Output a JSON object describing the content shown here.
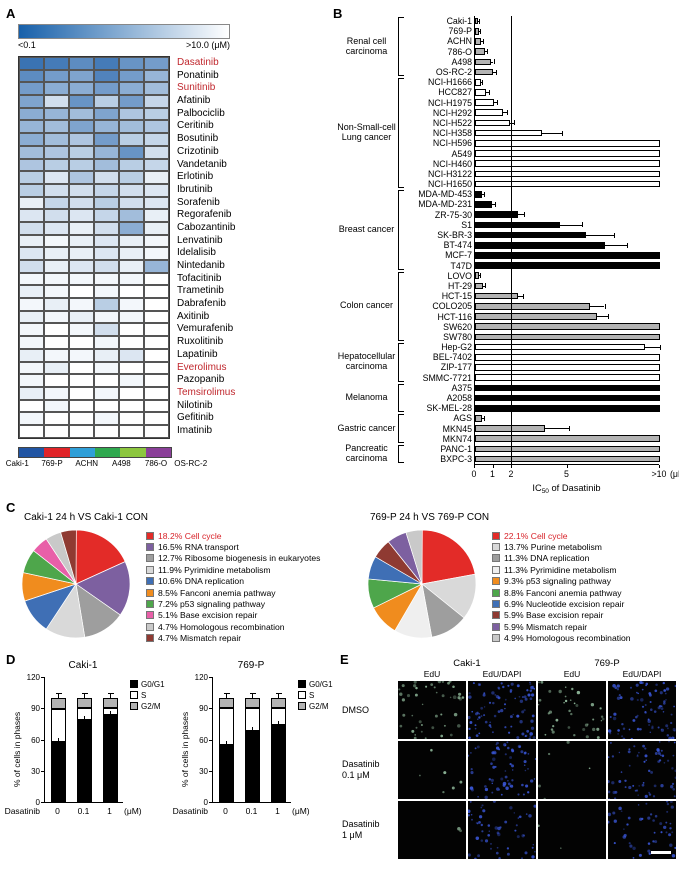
{
  "panels": {
    "a": "A",
    "b": "B",
    "c": "C",
    "d": "D",
    "e": "E"
  },
  "heatmap": {
    "scale_min_label": "<0.1",
    "scale_max_label": ">10.0 (μM)",
    "cell_lines": [
      "Caki-1",
      "769-P",
      "ACHN",
      "A498",
      "786-O",
      "OS-RC-2"
    ],
    "cell_line_colors": [
      "#2155a3",
      "#e02428",
      "#2f9fd8",
      "#2fa84f",
      "#8cc63e",
      "#8a3f98"
    ],
    "drugs": [
      {
        "name": "Dasatinib",
        "highlight": true,
        "values": [
          0.85,
          0.8,
          0.7,
          0.8,
          0.65,
          0.6
        ]
      },
      {
        "name": "Ponatinib",
        "highlight": false,
        "values": [
          0.7,
          0.6,
          0.55,
          0.75,
          0.6,
          0.45
        ]
      },
      {
        "name": "Sunitinib",
        "highlight": true,
        "values": [
          0.6,
          0.5,
          0.5,
          0.6,
          0.5,
          0.4
        ]
      },
      {
        "name": "Afatinib",
        "highlight": false,
        "values": [
          0.55,
          0.2,
          0.65,
          0.3,
          0.6,
          0.25
        ]
      },
      {
        "name": "Palbociclib",
        "highlight": false,
        "values": [
          0.5,
          0.45,
          0.4,
          0.55,
          0.35,
          0.3
        ]
      },
      {
        "name": "Ceritinib",
        "highlight": false,
        "values": [
          0.45,
          0.4,
          0.55,
          0.45,
          0.4,
          0.35
        ]
      },
      {
        "name": "Bosutinib",
        "highlight": false,
        "values": [
          0.5,
          0.4,
          0.35,
          0.6,
          0.3,
          0.25
        ]
      },
      {
        "name": "Crizotinib",
        "highlight": false,
        "values": [
          0.4,
          0.35,
          0.3,
          0.45,
          0.65,
          0.2
        ]
      },
      {
        "name": "Vandetanib",
        "highlight": false,
        "values": [
          0.35,
          0.3,
          0.3,
          0.4,
          0.3,
          0.25
        ]
      },
      {
        "name": "Erlotinib",
        "highlight": false,
        "values": [
          0.3,
          0.15,
          0.35,
          0.2,
          0.3,
          0.1
        ]
      },
      {
        "name": "Ibrutinib",
        "highlight": false,
        "values": [
          0.3,
          0.2,
          0.2,
          0.25,
          0.2,
          0.15
        ]
      },
      {
        "name": "Sorafenib",
        "highlight": false,
        "values": [
          0.1,
          0.25,
          0.2,
          0.3,
          0.2,
          0.15
        ]
      },
      {
        "name": "Regorafenib",
        "highlight": false,
        "values": [
          0.15,
          0.2,
          0.15,
          0.25,
          0.4,
          0.1
        ]
      },
      {
        "name": "Cabozantinib",
        "highlight": false,
        "values": [
          0.2,
          0.15,
          0.1,
          0.2,
          0.5,
          0.1
        ]
      },
      {
        "name": "Lenvatinib",
        "highlight": false,
        "values": [
          0.1,
          0.05,
          0.1,
          0.15,
          0.1,
          0.05
        ]
      },
      {
        "name": "Idelalisib",
        "highlight": false,
        "values": [
          0.15,
          0.1,
          0.1,
          0.15,
          0.1,
          0.05
        ]
      },
      {
        "name": "Nintedanib",
        "highlight": false,
        "values": [
          0.2,
          0.1,
          0.15,
          0.2,
          0.1,
          0.45
        ]
      },
      {
        "name": "Tofacitinib",
        "highlight": false,
        "values": [
          0.05,
          0.05,
          0.05,
          0.05,
          0.05,
          0
        ]
      },
      {
        "name": "Trametinib",
        "highlight": false,
        "values": [
          0.1,
          0.05,
          0,
          0.05,
          0,
          0
        ]
      },
      {
        "name": "Dabrafenib",
        "highlight": false,
        "values": [
          0.05,
          0.1,
          0.05,
          0.3,
          0.05,
          0
        ]
      },
      {
        "name": "Axitinib",
        "highlight": false,
        "values": [
          0.1,
          0.05,
          0.1,
          0.05,
          0.05,
          0
        ]
      },
      {
        "name": "Vemurafenib",
        "highlight": false,
        "values": [
          0.05,
          0,
          0.05,
          0.2,
          0,
          0
        ]
      },
      {
        "name": "Ruxolitinib",
        "highlight": false,
        "values": [
          0.05,
          0,
          0,
          0.05,
          0,
          0
        ]
      },
      {
        "name": "Lapatinib",
        "highlight": false,
        "values": [
          0.1,
          0.05,
          0.05,
          0.1,
          0.15,
          0
        ]
      },
      {
        "name": "Everolimus",
        "highlight": true,
        "values": [
          0.05,
          0.1,
          0,
          0.05,
          0,
          0
        ]
      },
      {
        "name": "Pazopanib",
        "highlight": false,
        "values": [
          0.05,
          0,
          0,
          0,
          0.05,
          0
        ]
      },
      {
        "name": "Temsirolimus",
        "highlight": true,
        "values": [
          0.1,
          0.05,
          0,
          0.05,
          0,
          0
        ]
      },
      {
        "name": "Nilotinib",
        "highlight": false,
        "values": [
          0,
          0.05,
          0,
          0,
          0,
          0
        ]
      },
      {
        "name": "Gefitinib",
        "highlight": false,
        "values": [
          0.05,
          0,
          0,
          0.05,
          0,
          0
        ]
      },
      {
        "name": "Imatinib",
        "highlight": false,
        "values": [
          0,
          0,
          0,
          0,
          0,
          0
        ]
      }
    ]
  },
  "bars": {
    "axis": {
      "ticks": [
        {
          "label": "0",
          "value": 0
        },
        {
          "label": "1",
          "value": 1
        },
        {
          "label": "2",
          "value": 2
        },
        {
          "label": "5",
          "value": 5
        },
        {
          "label": ">10",
          "value": 10
        }
      ],
      "unit": "(μM)",
      "max": 10,
      "ref_line": 2,
      "xlabel_prefix": "IC",
      "xlabel_sub": "50",
      "xlabel_suffix": " of Dasatinib"
    },
    "groups": [
      {
        "label": "Renal cell carcinoma",
        "fill": "#b3b3b3",
        "lines": [
          {
            "name": "Caki-1",
            "value": 0.15,
            "err": 0.06
          },
          {
            "name": "769-P",
            "value": 0.2,
            "err": 0.06
          },
          {
            "name": "ACHN",
            "value": 0.35,
            "err": 0.1
          },
          {
            "name": "786-O",
            "value": 0.55,
            "err": 0.12
          },
          {
            "name": "A498",
            "value": 0.85,
            "err": 0.15
          },
          {
            "name": "OS-RC-2",
            "value": 0.95,
            "err": 0.2
          }
        ]
      },
      {
        "label": "Non-Small-cell Lung cancer",
        "fill": "#ffffff",
        "lines": [
          {
            "name": "NCI-H1666",
            "value": 0.3,
            "err": 0.1
          },
          {
            "name": "HCC827",
            "value": 0.6,
            "err": 0.15
          },
          {
            "name": "NCI-H1975",
            "value": 1.0,
            "err": 0.2
          },
          {
            "name": "NCI-H292",
            "value": 1.5,
            "err": 0.25
          },
          {
            "name": "NCI-H522",
            "value": 1.9,
            "err": 0.2
          },
          {
            "name": "NCI-H358",
            "value": 3.6,
            "err": 1.1
          },
          {
            "name": "NCI-H596",
            "value": 10,
            "err": 0
          },
          {
            "name": "A549",
            "value": 10,
            "err": 0
          },
          {
            "name": "NCI-H460",
            "value": 10,
            "err": 0
          },
          {
            "name": "NCI-H3122",
            "value": 10,
            "err": 0
          },
          {
            "name": "NCI-H1650",
            "value": 10,
            "err": 0
          }
        ]
      },
      {
        "label": "Breast cancer",
        "fill": "#000000",
        "lines": [
          {
            "name": "MDA-MD-453",
            "value": 0.4,
            "err": 0.1
          },
          {
            "name": "MDA-MD-231",
            "value": 0.9,
            "err": 0.2
          },
          {
            "name": "ZR-75-30",
            "value": 2.3,
            "err": 0.35
          },
          {
            "name": "S1",
            "value": 4.6,
            "err": 1.2
          },
          {
            "name": "SK-BR-3",
            "value": 6.0,
            "err": 1.5
          },
          {
            "name": "BT-474",
            "value": 7.0,
            "err": 1.2
          },
          {
            "name": "MCF-7",
            "value": 10,
            "err": 0
          },
          {
            "name": "T47D",
            "value": 10,
            "err": 0
          }
        ]
      },
      {
        "label": "Colon cancer",
        "fill": "#b3b3b3",
        "lines": [
          {
            "name": "LOVO",
            "value": 0.2,
            "err": 0.05
          },
          {
            "name": "HT-29",
            "value": 0.45,
            "err": 0.1
          },
          {
            "name": "HCT-15",
            "value": 2.3,
            "err": 0.3
          },
          {
            "name": "COLO205",
            "value": 6.2,
            "err": 0.8
          },
          {
            "name": "HCT-116",
            "value": 6.6,
            "err": 0.6
          },
          {
            "name": "SW620",
            "value": 10,
            "err": 0
          },
          {
            "name": "SW780",
            "value": 10,
            "err": 0
          }
        ]
      },
      {
        "label": "Hepatocellular carcinoma",
        "fill": "#ffffff",
        "lines": [
          {
            "name": "Hep-G2",
            "value": 9.2,
            "err": 0.8
          },
          {
            "name": "BEL-7402",
            "value": 10,
            "err": 0
          },
          {
            "name": "ZIP-177",
            "value": 10,
            "err": 0
          },
          {
            "name": "SMMC-7721",
            "value": 10,
            "err": 0
          }
        ]
      },
      {
        "label": "Melanoma",
        "fill": "#000000",
        "lines": [
          {
            "name": "A375",
            "value": 10,
            "err": 0
          },
          {
            "name": "A2058",
            "value": 10,
            "err": 0
          },
          {
            "name": "SK-MEL-28",
            "value": 10,
            "err": 0
          }
        ]
      },
      {
        "label": "Gastric cancer",
        "fill": "#b3b3b3",
        "lines": [
          {
            "name": "AGS",
            "value": 0.4,
            "err": 0.1
          },
          {
            "name": "MKN45",
            "value": 3.8,
            "err": 1.3
          },
          {
            "name": "MKN74",
            "value": 10,
            "err": 0
          }
        ]
      },
      {
        "label": "Pancreatic carcinoma",
        "fill": "#b3b3b3",
        "lines": [
          {
            "name": "PANC-1",
            "value": 10,
            "err": 0
          },
          {
            "name": "BXPC-3",
            "value": 10,
            "err": 0
          }
        ]
      }
    ]
  },
  "pies": [
    {
      "title": "Caki-1 24 h VS Caki-1 CON",
      "slices": [
        {
          "pct": "18.2",
          "label": "Cell cycle",
          "color": "#e32b28",
          "label_red": true
        },
        {
          "pct": "16.5",
          "label": "RNA transport",
          "color": "#7d60a0",
          "label_red": false
        },
        {
          "pct": "12.7",
          "label": "Ribosome biogenesis in eukaryotes",
          "color": "#9e9e9e",
          "label_red": false
        },
        {
          "pct": "11.9",
          "label": "Pyrimidine metabolism",
          "color": "#d9d9d9",
          "label_red": false
        },
        {
          "pct": "10.6",
          "label": "DNA replication",
          "color": "#3f6fb5",
          "label_red": false
        },
        {
          "pct": "8.5",
          "label": "Fanconi anemia pathway",
          "color": "#f08c1e",
          "label_red": false
        },
        {
          "pct": "7.2",
          "label": "p53 signaling pathway",
          "color": "#4ea64b",
          "label_red": false
        },
        {
          "pct": "5.1",
          "label": "Base excision repair",
          "color": "#e85fa8",
          "label_red": false
        },
        {
          "pct": "4.7",
          "label": "Homologous recombination",
          "color": "#c9c9c9",
          "label_red": false
        },
        {
          "pct": "4.7",
          "label": "Mismatch repair",
          "color": "#8f3a32",
          "label_red": false
        }
      ]
    },
    {
      "title": "769-P 24 h VS 769-P CON",
      "slices": [
        {
          "pct": "22.1",
          "label": "Cell cycle",
          "color": "#e32b28",
          "label_red": true
        },
        {
          "pct": "13.7",
          "label": "Purine metabolism",
          "color": "#d9d9d9",
          "label_red": false
        },
        {
          "pct": "11.3",
          "label": "DNA replication",
          "color": "#9e9e9e",
          "label_red": false
        },
        {
          "pct": "11.3",
          "label": "Pyrimidine metabolism",
          "color": "#efefef",
          "label_red": false
        },
        {
          "pct": "9.3",
          "label": "p53 signaling pathway",
          "color": "#f08c1e",
          "label_red": false
        },
        {
          "pct": "8.8",
          "label": "Fanconi anemia pathway",
          "color": "#4ea64b",
          "label_red": false
        },
        {
          "pct": "6.9",
          "label": "Nucleotide excision repair",
          "color": "#3f6fb5",
          "label_red": false
        },
        {
          "pct": "5.9",
          "label": "Base excision repair",
          "color": "#8f3a32",
          "label_red": false
        },
        {
          "pct": "5.9",
          "label": "Mismatch repair",
          "color": "#7d60a0",
          "label_red": false
        },
        {
          "pct": "4.9",
          "label": "Homologous recombination",
          "color": "#c9c9c9",
          "label_red": false
        }
      ]
    }
  ],
  "phases": {
    "ylabel": "% of cells in phases",
    "yticks": [
      0,
      30,
      60,
      90,
      120
    ],
    "ymax": 120,
    "xlabel": "Dasatinib",
    "unit": "(μM)",
    "legend": [
      {
        "label": "G0/G1",
        "color": "#000000"
      },
      {
        "label": "S",
        "color": "#ffffff"
      },
      {
        "label": "G2/M",
        "color": "#b3b3b3"
      }
    ],
    "charts": [
      {
        "title": "Caki-1",
        "doses": [
          "0",
          "0.1",
          "1"
        ],
        "bars": [
          [
            58,
            31,
            11
          ],
          [
            79,
            11,
            10
          ],
          [
            84,
            6,
            10
          ]
        ]
      },
      {
        "title": "769-P",
        "doses": [
          "0",
          "0.1",
          "1"
        ],
        "bars": [
          [
            55,
            35,
            10
          ],
          [
            68,
            22,
            10
          ],
          [
            74,
            16,
            10
          ]
        ]
      }
    ]
  },
  "micrographs": {
    "col_groups": [
      "Caki-1",
      "769-P"
    ],
    "sub_cols": [
      "EdU",
      "EdU/DAPI",
      "EdU",
      "EdU/DAPI"
    ],
    "rows": [
      {
        "label_lines": [
          "DMSO"
        ],
        "dot_counts": [
          45,
          90,
          40,
          85
        ]
      },
      {
        "label_lines": [
          "Dasatinib",
          "0.1 μM"
        ],
        "dot_counts": [
          6,
          70,
          5,
          65
        ]
      },
      {
        "label_lines": [
          "Dasatinib",
          "1 μM"
        ],
        "dot_counts": [
          2,
          55,
          2,
          50
        ]
      }
    ],
    "edu_dot_color": "#8fb89a",
    "dapi_dot_color": "#3a57d8"
  }
}
